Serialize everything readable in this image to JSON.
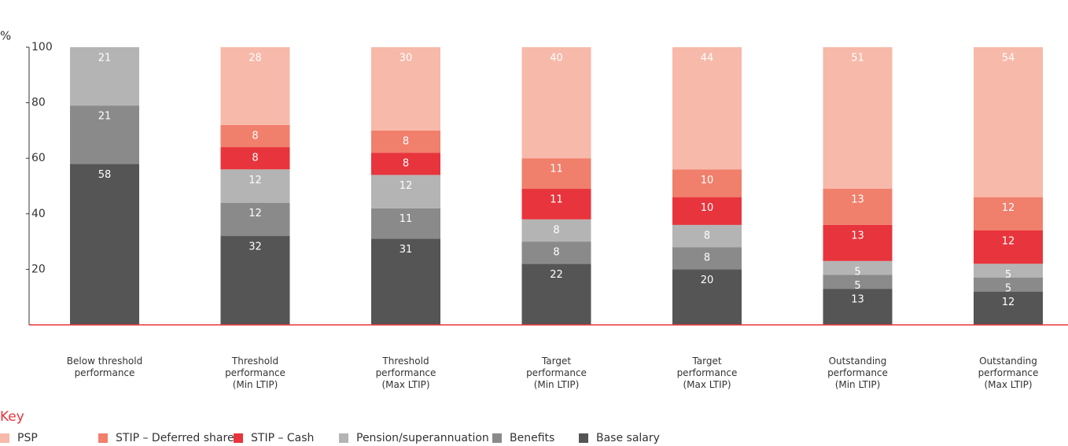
{
  "chart_data": {
    "type": "stacked-bar",
    "y_axis_label": "%",
    "categories": [
      "Below threshold\nperformance",
      "Threshold\nperformance\n(Min LTIP)",
      "Threshold\nperformance\n(Max LTIP)",
      "Target\nperformance\n(Min LTIP)",
      "Target\nperformance\n(Max LTIP)",
      "Outstanding\nperformance\n(Min LTIP)",
      "Outstanding\nperformance\n(Max LTIP)"
    ],
    "series": [
      {
        "name": "PSP",
        "color": "#f7b9a9",
        "values": [
          null,
          28,
          30,
          40,
          44,
          51,
          54
        ]
      },
      {
        "name": "STIP – Deferred shares",
        "color": "#f07f6c",
        "values": [
          null,
          8,
          8,
          11,
          10,
          13,
          12
        ]
      },
      {
        "name": "STIP – Cash",
        "color": "#e8343c",
        "values": [
          null,
          8,
          8,
          11,
          10,
          13,
          12
        ]
      },
      {
        "name": "Pension/superannuation",
        "color": "#b4b4b4",
        "values": [
          21,
          12,
          12,
          8,
          8,
          5,
          5
        ]
      },
      {
        "name": "Benefits",
        "color": "#8a8a8a",
        "values": [
          21,
          12,
          11,
          8,
          8,
          5,
          5
        ]
      },
      {
        "name": "Base salary",
        "color": "#555555",
        "values": [
          58,
          32,
          31,
          22,
          20,
          13,
          12
        ]
      }
    ],
    "ylim": [
      0,
      100
    ],
    "yticks": [
      20,
      40,
      60,
      80,
      100
    ],
    "legend_title": "Key",
    "legend_position": "bottom"
  }
}
